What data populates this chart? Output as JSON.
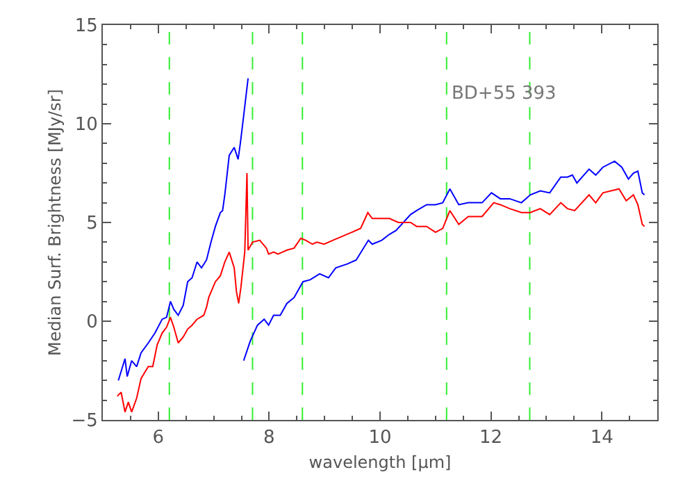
{
  "chart_data": {
    "type": "line",
    "xlabel": "wavelength [μm]",
    "ylabel": "Median Surf. Brightness [MJy/sr]",
    "annotations": [
      {
        "text": "BD+55 393",
        "x": 11.25,
        "y": 11.5
      }
    ],
    "xlim": [
      5,
      15
    ],
    "xticks": [
      6,
      8,
      10,
      12,
      14
    ],
    "ylim": [
      -5,
      15
    ],
    "yticks": [
      -5,
      0,
      5,
      10,
      15
    ],
    "marker": "none",
    "line_style": "solid",
    "ref_lines": [
      {
        "axis": "x",
        "value": 6.2,
        "color": "#33ee33",
        "line_style": "dashed"
      },
      {
        "axis": "x",
        "value": 7.7,
        "color": "#33ee33",
        "line_style": "dashed"
      },
      {
        "axis": "x",
        "value": 8.6,
        "color": "#33ee33",
        "line_style": "dashed"
      },
      {
        "axis": "x",
        "value": 11.2,
        "color": "#33ee33",
        "line_style": "dashed"
      },
      {
        "axis": "x",
        "value": 12.7,
        "color": "#33ee33",
        "line_style": "dashed"
      }
    ],
    "series": [
      {
        "color": "#0000ff",
        "x": [
          5.28,
          5.4,
          5.44,
          5.52,
          5.61,
          5.69,
          5.82,
          5.94,
          6.07,
          6.15,
          6.22,
          6.28,
          6.36,
          6.45,
          6.53,
          6.61,
          6.7,
          6.78,
          6.87,
          6.95,
          7.03,
          7.12,
          7.16,
          7.2,
          7.28,
          7.37,
          7.44,
          7.48,
          7.54,
          7.62,
          7.6,
          7.54,
          7.66,
          7.79,
          7.91,
          7.99,
          8.08,
          8.2,
          8.32,
          8.45,
          8.61,
          8.74,
          8.91,
          9.07,
          9.2,
          9.41,
          9.57,
          9.79,
          9.86,
          10.03,
          10.17,
          10.29,
          10.55,
          10.66,
          10.84,
          11.0,
          11.13,
          11.26,
          11.42,
          11.59,
          11.84,
          12.01,
          12.17,
          12.34,
          12.55,
          12.71,
          12.89,
          13.06,
          13.26,
          13.38,
          13.47,
          13.55,
          13.77,
          13.89,
          14.02,
          14.23,
          14.36,
          14.48,
          14.57,
          14.65,
          14.73,
          14.77
        ],
        "values": [
          -3.0,
          -1.9,
          -2.8,
          -2.0,
          -2.3,
          -1.6,
          -1.1,
          -0.6,
          0.1,
          0.2,
          1.0,
          0.6,
          0.3,
          0.8,
          2.0,
          2.2,
          3.0,
          2.7,
          3.1,
          4.0,
          4.8,
          5.5,
          5.6,
          6.4,
          8.4,
          8.8,
          8.2,
          9.0,
          10.4,
          12.3,
          null,
          -2.0,
          -1.0,
          -0.2,
          0.1,
          -0.2,
          0.3,
          0.3,
          0.9,
          1.2,
          2.0,
          2.1,
          2.4,
          2.2,
          2.7,
          2.9,
          3.1,
          4.1,
          3.9,
          4.1,
          4.4,
          4.6,
          5.4,
          5.6,
          5.9,
          5.9,
          6.0,
          6.7,
          5.9,
          6.0,
          6.0,
          6.5,
          6.2,
          6.2,
          6.0,
          6.4,
          6.6,
          6.5,
          7.3,
          7.3,
          7.4,
          7.0,
          7.7,
          7.4,
          7.8,
          8.1,
          7.8,
          7.2,
          7.5,
          7.6,
          6.5,
          6.4
        ]
      },
      {
        "color": "#ff0000",
        "x": [
          5.26,
          5.33,
          5.4,
          5.46,
          5.52,
          5.61,
          5.69,
          5.82,
          5.9,
          5.98,
          6.07,
          6.15,
          6.22,
          6.28,
          6.36,
          6.45,
          6.53,
          6.61,
          6.7,
          6.82,
          6.87,
          6.91,
          7.03,
          7.12,
          7.2,
          7.28,
          7.37,
          7.41,
          7.45,
          7.49,
          7.56,
          7.6,
          7.62,
          7.7,
          7.83,
          7.95,
          7.99,
          8.08,
          8.16,
          8.24,
          8.32,
          8.45,
          8.57,
          8.66,
          8.78,
          8.86,
          8.99,
          9.15,
          9.32,
          9.49,
          9.65,
          9.78,
          9.86,
          10.03,
          10.17,
          10.33,
          10.55,
          10.66,
          10.84,
          11.0,
          11.13,
          11.26,
          11.42,
          11.59,
          11.84,
          12.05,
          12.17,
          12.34,
          12.55,
          12.71,
          12.89,
          13.06,
          13.26,
          13.38,
          13.51,
          13.77,
          13.89,
          14.02,
          14.31,
          14.44,
          14.57,
          14.65,
          14.73,
          14.77
        ],
        "values": [
          -3.8,
          -3.6,
          -4.6,
          -4.1,
          -4.6,
          -3.9,
          -2.9,
          -2.3,
          -2.3,
          -1.2,
          -0.6,
          -0.3,
          0.2,
          -0.3,
          -1.1,
          -0.8,
          -0.4,
          -0.2,
          0.1,
          0.3,
          0.7,
          1.2,
          2.0,
          2.3,
          3.0,
          3.5,
          2.7,
          1.5,
          0.9,
          1.7,
          3.5,
          7.5,
          3.6,
          4.0,
          4.1,
          3.7,
          3.4,
          3.5,
          3.4,
          3.5,
          3.6,
          3.7,
          4.2,
          4.1,
          3.9,
          4.0,
          3.9,
          4.1,
          4.3,
          4.5,
          4.7,
          5.5,
          5.2,
          5.2,
          5.2,
          5.0,
          5.0,
          4.8,
          4.8,
          4.5,
          4.7,
          5.6,
          4.9,
          5.3,
          5.3,
          6.0,
          5.9,
          5.7,
          5.5,
          5.5,
          5.7,
          5.4,
          6.0,
          5.7,
          5.6,
          6.4,
          6.0,
          6.5,
          6.7,
          6.1,
          6.4,
          5.9,
          4.9,
          4.8
        ]
      }
    ]
  }
}
